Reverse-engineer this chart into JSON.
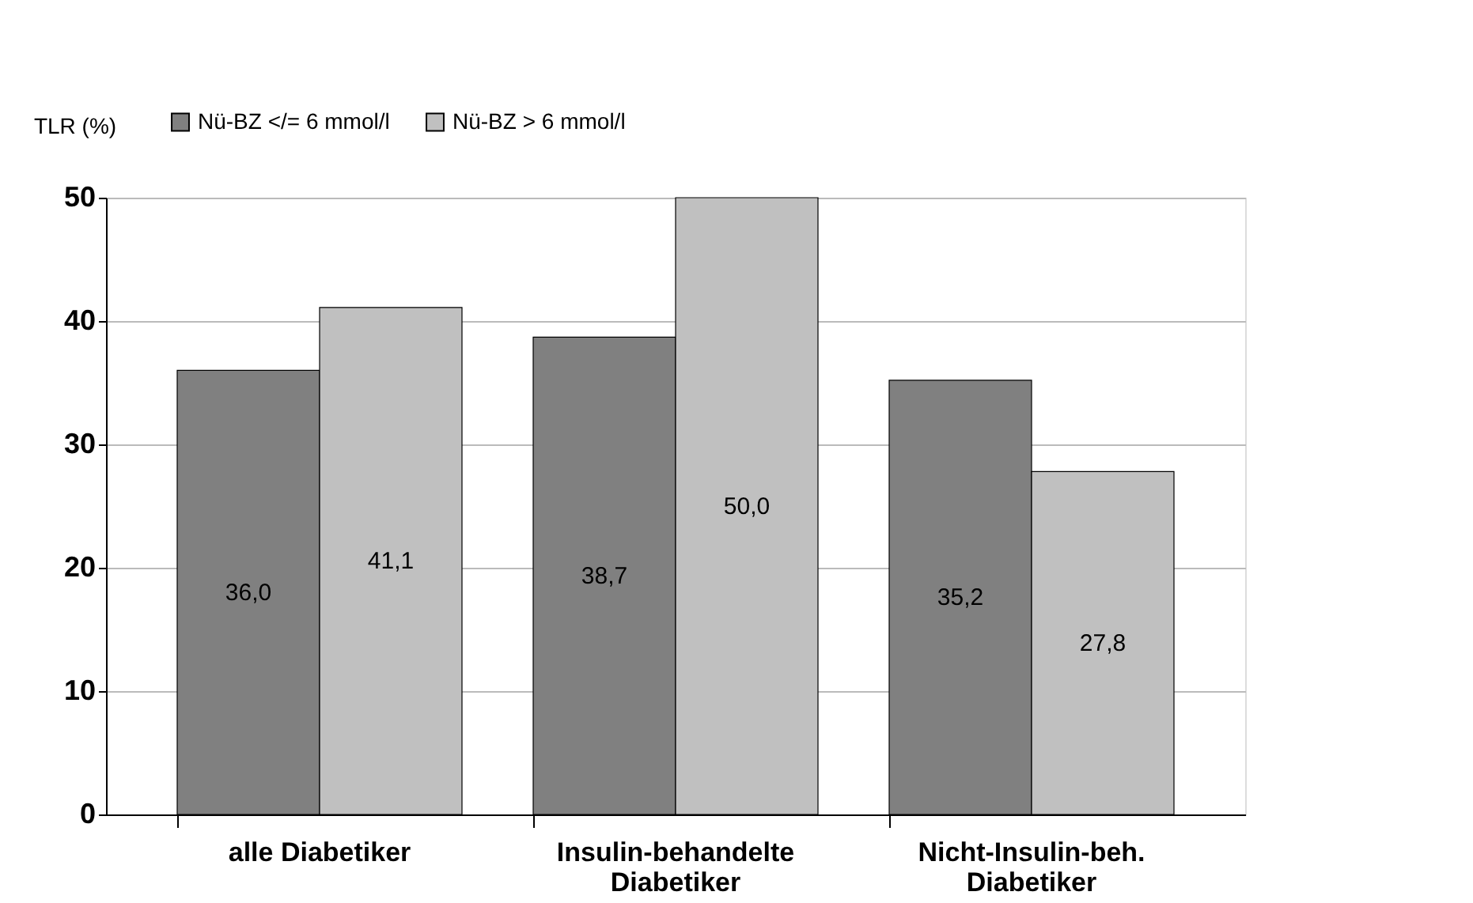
{
  "chart_data": {
    "type": "bar",
    "ylabel": "TLR (%)",
    "categories": [
      "alle Diabetiker",
      "Insulin-behandelte Diabetiker",
      "Nicht-Insulin-beh. Diabetiker"
    ],
    "series": [
      {
        "name": "Nü-BZ </= 6 mmol/l",
        "color": "#808080",
        "values": [
          36.0,
          38.7,
          35.2
        ],
        "value_labels": [
          "36,0",
          "38,7",
          "35,2"
        ]
      },
      {
        "name": "Nü-BZ > 6 mmol/l",
        "color": "#c0c0c0",
        "values": [
          41.1,
          50.0,
          27.8
        ],
        "value_labels": [
          "41,1",
          "50,0",
          "27,8"
        ]
      }
    ],
    "ylim": [
      0,
      50
    ],
    "yticks": [
      0,
      10,
      20,
      30,
      40,
      50
    ],
    "grid": "y",
    "legend": "top left"
  }
}
